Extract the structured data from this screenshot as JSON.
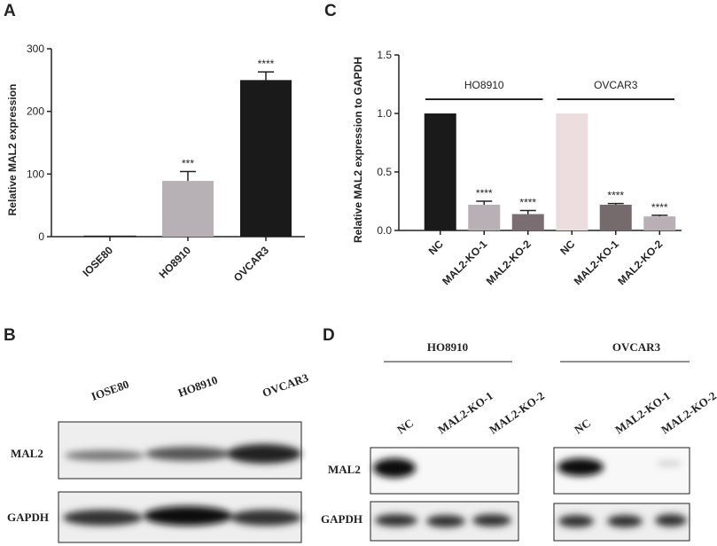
{
  "chart_data": [
    {
      "type": "bar",
      "panel": "A",
      "ylabel": "Relative MAL2 expression",
      "ylim": [
        0,
        300
      ],
      "yticks": [
        0,
        100,
        200,
        300
      ],
      "groups": [
        {
          "categories": [
            "IOSE80",
            "HO8910",
            "OVCAR3"
          ],
          "values": [
            1,
            89,
            250
          ],
          "errors": [
            0,
            15,
            13
          ],
          "colors": [
            "#ffffff",
            "#b7b0b4",
            "#1a1a1a"
          ],
          "annotations": [
            null,
            "***",
            "****"
          ]
        }
      ]
    },
    {
      "type": "bar",
      "panel": "C",
      "ylabel": "Relative MAL2 expression to GAPDH",
      "ylim": [
        0,
        1.5
      ],
      "yticks": [
        {
          "value": 0,
          "label": "0.0"
        },
        {
          "value": 0.5,
          "label": "0.5"
        },
        {
          "value": 1,
          "label": "1.0"
        },
        {
          "value": 1.5,
          "label": "1.5"
        }
      ],
      "groups": [
        {
          "name": "HO8910",
          "categories": [
            "NC",
            "MAL2-KO-1",
            "MAL2-KO-2"
          ],
          "values": [
            1.0,
            0.22,
            0.14
          ],
          "errors": [
            0,
            0.03,
            0.03
          ],
          "colors": [
            "#1a1a1a",
            "#b8b0b4",
            "#7a6e72"
          ],
          "annotations": [
            null,
            "****",
            "****"
          ]
        },
        {
          "name": "OVCAR3",
          "categories": [
            "NC",
            "MAL2-KO-1",
            "MAL2-KO-2"
          ],
          "values": [
            1.0,
            0.22,
            0.12
          ],
          "errors": [
            0,
            0.01,
            0.01
          ],
          "colors": [
            "#ecdede",
            "#756b6d",
            "#b8b0b4"
          ],
          "annotations": [
            null,
            "****",
            "****"
          ]
        }
      ]
    }
  ],
  "blot_b": {
    "panel": "B",
    "lanes": [
      "IOSE80",
      "HO8910",
      "OVCAR3"
    ],
    "rows": [
      "MAL2",
      "GAPDH"
    ]
  },
  "blot_d": {
    "panel": "D",
    "groups": [
      {
        "name": "HO8910",
        "lanes": [
          "NC",
          "MAL2-KO-1",
          "MAL2-KO-2"
        ]
      },
      {
        "name": "OVCAR3",
        "lanes": [
          "NC",
          "MAL2-KO-1",
          "MAL2-KO-2"
        ]
      }
    ],
    "rows": [
      "MAL2",
      "GAPDH"
    ]
  }
}
